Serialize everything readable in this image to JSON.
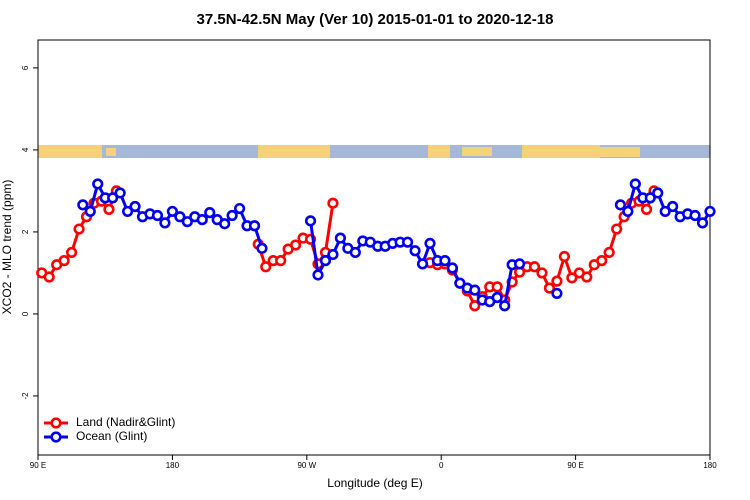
{
  "chart_data": {
    "type": "line",
    "title": "37.5N-42.5N May (Ver 10)   2015-01-01 to 2020-12-18",
    "x_label": "Longitude (deg E)",
    "y_label": "XCO2 - MLO trend (ppm)",
    "xlim": [
      90,
      540
    ],
    "xticks": [
      {
        "value": 90,
        "label": "90 E"
      },
      180,
      {
        "value": 270,
        "label": "90 W"
      },
      {
        "value": 360,
        "label": "0"
      },
      {
        "value": 450,
        "label": "90 E"
      },
      {
        "value": 540,
        "label": "180"
      }
    ],
    "ylim": [
      -3.44,
      6.68
    ],
    "yticks": [
      -2,
      0,
      2,
      4,
      6
    ],
    "legend": "bottom-left",
    "series": [
      {
        "name": "Land (Nadir&Glint)",
        "color": "#ff0000",
        "x": [
          92.5,
          97.5,
          102.5,
          107.5,
          112.5,
          117.5,
          122.5,
          127.5,
          132.5,
          137.5,
          142.5,
          null,
          237.5,
          242.5,
          247.5,
          252.5,
          257.5,
          262.5,
          267.5,
          272.5,
          277.5,
          282.5,
          287.5,
          null,
          352.5,
          357.5,
          362.5,
          367.5,
          372.5,
          377.5,
          382.5,
          387.5,
          392.5,
          397.5,
          402.5,
          407.5,
          412.5,
          417.5,
          422.5,
          427.5,
          432.5,
          437.5,
          442.5,
          447.5,
          452.5,
          457.5,
          462.5,
          467.5,
          472.5,
          477.5,
          482.5,
          487.5,
          492.5,
          497.5,
          502.5
        ],
        "values": [
          1.0,
          0.9,
          1.2,
          1.3,
          1.5,
          2.07,
          2.37,
          2.7,
          2.75,
          2.55,
          3.0,
          null,
          1.7,
          1.15,
          1.3,
          1.3,
          1.58,
          1.68,
          1.85,
          1.82,
          1.22,
          1.5,
          2.7,
          null,
          1.25,
          1.2,
          1.22,
          1.07,
          0.75,
          0.56,
          0.2,
          0.42,
          0.66,
          0.66,
          0.34,
          0.78,
          1.02,
          1.15,
          1.15,
          1.0,
          0.63,
          0.8,
          1.4,
          0.88,
          1.0,
          0.9,
          1.2,
          1.3,
          1.5,
          2.07,
          2.37,
          2.7,
          2.75,
          2.55,
          3.0
        ]
      },
      {
        "name": "Ocean (Glint)",
        "color": "#0000ee",
        "x": [
          120,
          125,
          130,
          135,
          140,
          145,
          150,
          155,
          160,
          165,
          170,
          175,
          180,
          185,
          190,
          195,
          200,
          205,
          210,
          215,
          220,
          225,
          230,
          235,
          240,
          null,
          272.5,
          277.5,
          282.5,
          287.5,
          292.5,
          297.5,
          302.5,
          307.5,
          312.5,
          317.5,
          322.5,
          327.5,
          332.5,
          337.5,
          342.5,
          347.5,
          352.5,
          357.5,
          362.5,
          367.5,
          372.5,
          377.5,
          382.5,
          387.5,
          392.5,
          397.5,
          402.5,
          407.5,
          412.5,
          null,
          437.5,
          null,
          480,
          485,
          490,
          495,
          500,
          505,
          510,
          515,
          520,
          525,
          530,
          535,
          540
        ],
        "values": [
          2.66,
          2.5,
          3.17,
          2.83,
          2.83,
          2.95,
          2.5,
          2.62,
          2.37,
          2.44,
          2.4,
          2.22,
          2.5,
          2.37,
          2.25,
          2.37,
          2.3,
          2.47,
          2.3,
          2.2,
          2.4,
          2.57,
          2.15,
          2.15,
          1.6,
          null,
          2.27,
          0.95,
          1.3,
          1.45,
          1.85,
          1.6,
          1.5,
          1.78,
          1.75,
          1.65,
          1.65,
          1.72,
          1.75,
          1.75,
          1.54,
          1.22,
          1.72,
          1.3,
          1.3,
          1.12,
          0.75,
          0.63,
          0.58,
          0.34,
          0.3,
          0.4,
          0.2,
          1.2,
          1.22,
          null,
          0.5,
          null,
          2.66,
          2.5,
          3.17,
          2.83,
          2.83,
          2.95,
          2.5,
          2.62,
          2.37,
          2.44,
          2.4,
          2.22,
          2.5
        ]
      }
    ]
  }
}
